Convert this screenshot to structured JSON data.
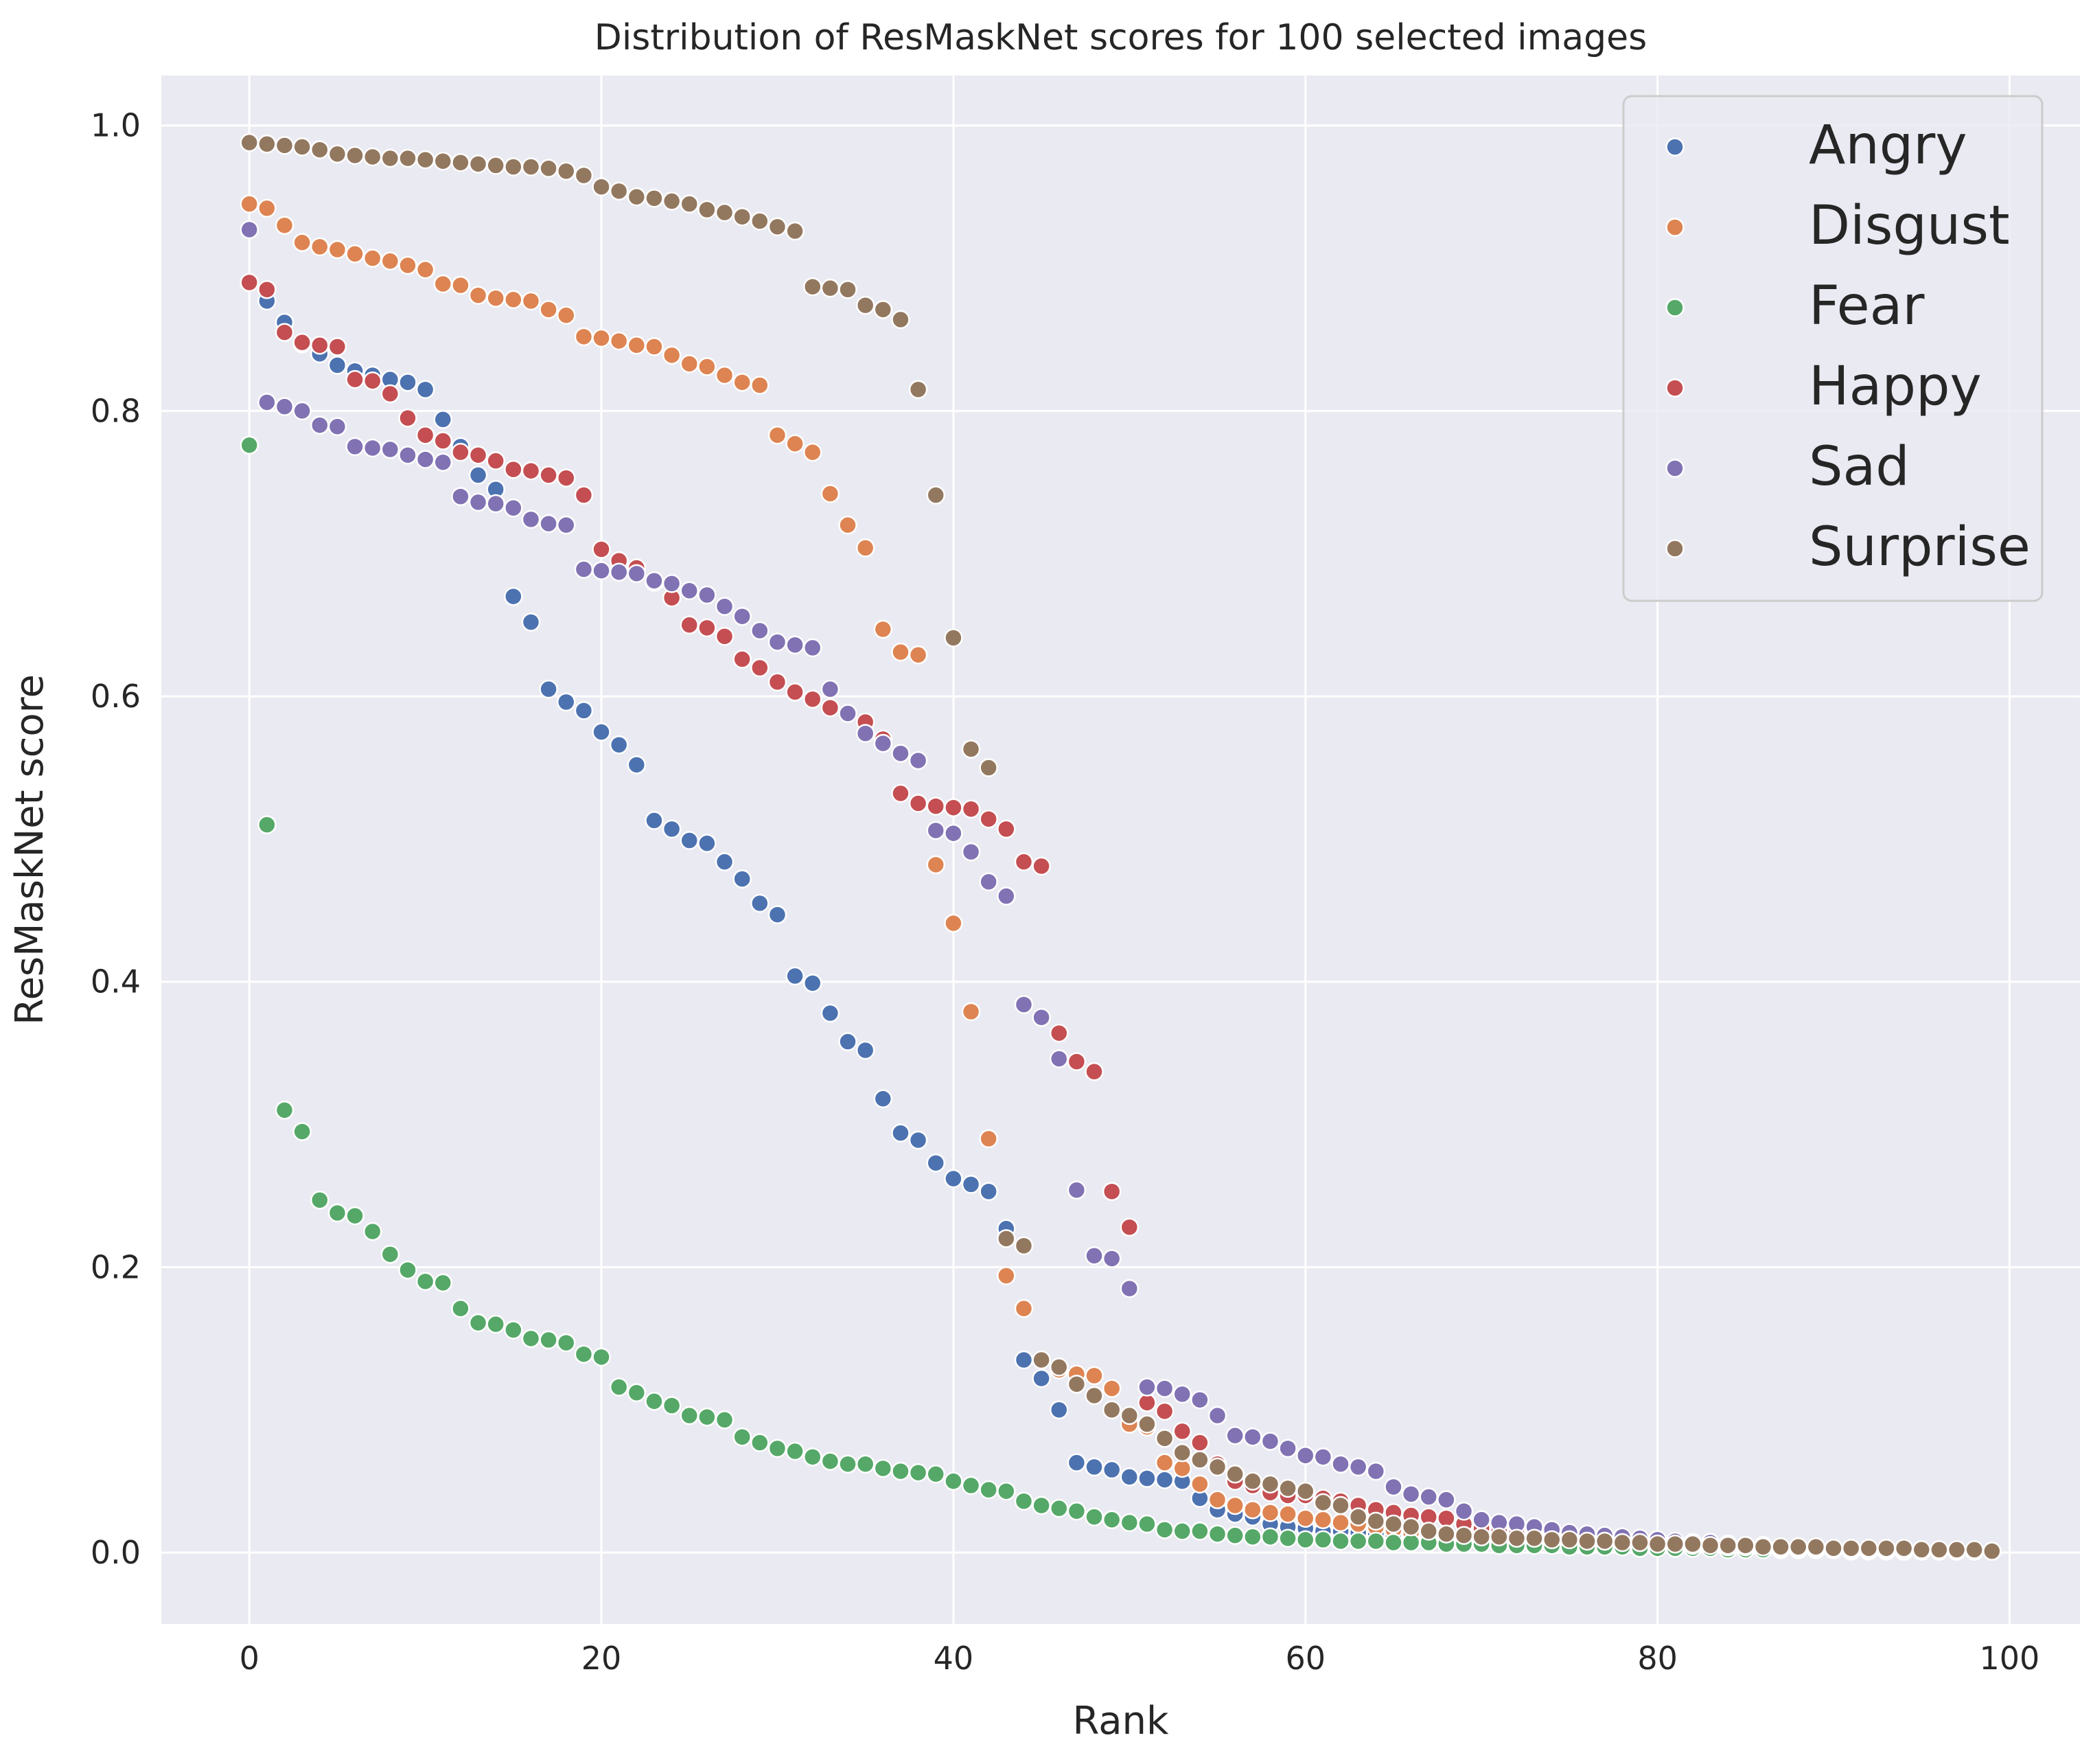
{
  "chart_data": {
    "type": "scatter",
    "title": "Distribution of ResMaskNet scores for 100 selected images",
    "xlabel": "Rank",
    "ylabel": "ResMaskNet score",
    "xlim": [
      -5,
      104
    ],
    "ylim": [
      -0.05,
      1.035
    ],
    "xticks": [
      "0",
      "20",
      "40",
      "60",
      "80",
      "100"
    ],
    "yticks": [
      "0.0",
      "0.2",
      "0.4",
      "0.6",
      "0.8",
      "1.0"
    ],
    "grid": true,
    "legend_position": "top-right",
    "series": [
      {
        "name": "Angry",
        "color": "#4c72b0",
        "values": [
          0.89,
          0.877,
          0.862,
          0.847,
          0.84,
          0.832,
          0.828,
          0.825,
          0.822,
          0.82,
          0.815,
          0.794,
          0.775,
          0.755,
          0.745,
          0.67,
          0.652,
          0.605,
          0.596,
          0.59,
          0.575,
          0.566,
          0.552,
          0.513,
          0.507,
          0.499,
          0.497,
          0.484,
          0.472,
          0.455,
          0.447,
          0.404,
          0.399,
          0.378,
          0.358,
          0.352,
          0.318,
          0.294,
          0.289,
          0.273,
          0.262,
          0.258,
          0.253,
          0.227,
          0.135,
          0.122,
          0.1,
          0.063,
          0.06,
          0.058,
          0.053,
          0.052,
          0.051,
          0.05,
          0.038,
          0.03,
          0.027,
          0.025,
          0.02,
          0.018,
          0.017,
          0.015,
          0.015,
          0.014,
          0.013,
          0.012,
          0.012,
          0.011,
          0.01,
          0.01,
          0.009,
          0.009,
          0.008,
          0.008,
          0.007,
          0.007,
          0.006,
          0.006,
          0.005,
          0.005,
          0.005,
          0.004,
          0.004,
          0.004,
          0.003,
          0.003,
          0.003,
          0.003,
          0.002,
          0.002,
          0.002,
          0.002,
          0.002,
          0.002,
          0.001,
          0.001,
          0.001,
          0.001,
          0.001,
          0.001
        ]
      },
      {
        "name": "Disgust",
        "color": "#dd8452",
        "values": [
          0.945,
          0.942,
          0.93,
          0.918,
          0.915,
          0.913,
          0.91,
          0.907,
          0.905,
          0.902,
          0.899,
          0.889,
          0.888,
          0.881,
          0.879,
          0.878,
          0.877,
          0.871,
          0.867,
          0.852,
          0.851,
          0.849,
          0.846,
          0.845,
          0.839,
          0.833,
          0.831,
          0.825,
          0.82,
          0.818,
          0.783,
          0.777,
          0.771,
          0.742,
          0.72,
          0.704,
          0.647,
          0.631,
          0.629,
          0.482,
          0.441,
          0.379,
          0.29,
          0.194,
          0.171,
          0.135,
          0.128,
          0.125,
          0.124,
          0.115,
          0.09,
          0.088,
          0.063,
          0.059,
          0.048,
          0.037,
          0.033,
          0.03,
          0.028,
          0.027,
          0.024,
          0.023,
          0.021,
          0.02,
          0.018,
          0.016,
          0.014,
          0.012,
          0.011,
          0.01,
          0.009,
          0.009,
          0.008,
          0.008,
          0.007,
          0.007,
          0.006,
          0.006,
          0.006,
          0.005,
          0.005,
          0.005,
          0.004,
          0.004,
          0.004,
          0.003,
          0.003,
          0.003,
          0.003,
          0.002,
          0.002,
          0.002,
          0.002,
          0.002,
          0.001,
          0.001,
          0.001,
          0.001,
          0.001,
          0.001
        ]
      },
      {
        "name": "Fear",
        "color": "#55a868",
        "values": [
          0.776,
          0.51,
          0.31,
          0.295,
          0.247,
          0.238,
          0.236,
          0.225,
          0.209,
          0.198,
          0.19,
          0.189,
          0.171,
          0.161,
          0.16,
          0.156,
          0.15,
          0.149,
          0.147,
          0.139,
          0.137,
          0.116,
          0.112,
          0.106,
          0.103,
          0.096,
          0.095,
          0.093,
          0.081,
          0.077,
          0.073,
          0.071,
          0.067,
          0.064,
          0.062,
          0.062,
          0.059,
          0.057,
          0.056,
          0.055,
          0.05,
          0.047,
          0.044,
          0.043,
          0.036,
          0.033,
          0.031,
          0.029,
          0.025,
          0.023,
          0.021,
          0.02,
          0.016,
          0.015,
          0.015,
          0.013,
          0.012,
          0.011,
          0.011,
          0.01,
          0.009,
          0.009,
          0.008,
          0.008,
          0.008,
          0.007,
          0.007,
          0.007,
          0.006,
          0.006,
          0.006,
          0.005,
          0.005,
          0.005,
          0.005,
          0.004,
          0.004,
          0.004,
          0.004,
          0.003,
          0.003,
          0.003,
          0.003,
          0.003,
          0.002,
          0.002,
          0.002,
          0.002,
          0.002,
          0.002,
          0.002,
          0.001,
          0.001,
          0.001,
          0.001,
          0.001,
          0.001,
          0.001,
          0.001,
          0.001
        ]
      },
      {
        "name": "Happy",
        "color": "#c44e52",
        "values": [
          0.89,
          0.885,
          0.855,
          0.848,
          0.846,
          0.845,
          0.822,
          0.821,
          0.812,
          0.795,
          0.783,
          0.779,
          0.771,
          0.769,
          0.765,
          0.759,
          0.758,
          0.755,
          0.753,
          0.741,
          0.703,
          0.695,
          0.69,
          0.68,
          0.669,
          0.65,
          0.648,
          0.642,
          0.626,
          0.62,
          0.61,
          0.603,
          0.598,
          0.592,
          0.588,
          0.582,
          0.57,
          0.532,
          0.525,
          0.523,
          0.522,
          0.521,
          0.514,
          0.507,
          0.484,
          0.481,
          0.364,
          0.344,
          0.337,
          0.253,
          0.228,
          0.105,
          0.099,
          0.085,
          0.077,
          0.062,
          0.05,
          0.047,
          0.042,
          0.04,
          0.04,
          0.038,
          0.036,
          0.033,
          0.03,
          0.028,
          0.026,
          0.025,
          0.024,
          0.02,
          0.017,
          0.015,
          0.013,
          0.012,
          0.011,
          0.01,
          0.009,
          0.008,
          0.008,
          0.007,
          0.006,
          0.006,
          0.005,
          0.005,
          0.004,
          0.004,
          0.004,
          0.003,
          0.003,
          0.003,
          0.002,
          0.002,
          0.002,
          0.002,
          0.001,
          0.001,
          0.001,
          0.001,
          0.001,
          0.001
        ]
      },
      {
        "name": "Sad",
        "color": "#8172b3",
        "values": [
          0.927,
          0.806,
          0.803,
          0.8,
          0.79,
          0.789,
          0.775,
          0.774,
          0.773,
          0.769,
          0.766,
          0.764,
          0.74,
          0.736,
          0.735,
          0.732,
          0.724,
          0.721,
          0.72,
          0.689,
          0.688,
          0.687,
          0.686,
          0.681,
          0.679,
          0.674,
          0.671,
          0.663,
          0.656,
          0.646,
          0.638,
          0.636,
          0.634,
          0.605,
          0.588,
          0.574,
          0.567,
          0.56,
          0.555,
          0.506,
          0.504,
          0.491,
          0.47,
          0.46,
          0.384,
          0.375,
          0.346,
          0.254,
          0.208,
          0.206,
          0.185,
          0.116,
          0.115,
          0.111,
          0.107,
          0.096,
          0.082,
          0.081,
          0.078,
          0.073,
          0.068,
          0.067,
          0.062,
          0.06,
          0.057,
          0.046,
          0.041,
          0.039,
          0.037,
          0.029,
          0.023,
          0.021,
          0.02,
          0.018,
          0.016,
          0.014,
          0.013,
          0.012,
          0.011,
          0.01,
          0.009,
          0.008,
          0.007,
          0.007,
          0.006,
          0.005,
          0.005,
          0.004,
          0.004,
          0.004,
          0.003,
          0.003,
          0.003,
          0.002,
          0.002,
          0.002,
          0.002,
          0.001,
          0.001,
          0.001
        ]
      },
      {
        "name": "Surprise",
        "color": "#937860",
        "values": [
          0.988,
          0.987,
          0.986,
          0.985,
          0.983,
          0.98,
          0.979,
          0.978,
          0.977,
          0.977,
          0.976,
          0.975,
          0.974,
          0.973,
          0.972,
          0.971,
          0.971,
          0.97,
          0.968,
          0.965,
          0.957,
          0.954,
          0.95,
          0.949,
          0.947,
          0.945,
          0.941,
          0.939,
          0.936,
          0.933,
          0.929,
          0.926,
          0.887,
          0.886,
          0.885,
          0.874,
          0.871,
          0.864,
          0.815,
          0.741,
          0.641,
          0.563,
          0.55,
          0.22,
          0.215,
          0.135,
          0.13,
          0.118,
          0.11,
          0.1,
          0.096,
          0.09,
          0.08,
          0.07,
          0.065,
          0.06,
          0.055,
          0.05,
          0.048,
          0.045,
          0.043,
          0.035,
          0.033,
          0.025,
          0.022,
          0.02,
          0.018,
          0.015,
          0.013,
          0.012,
          0.011,
          0.011,
          0.01,
          0.01,
          0.009,
          0.009,
          0.008,
          0.008,
          0.007,
          0.007,
          0.006,
          0.006,
          0.006,
          0.005,
          0.005,
          0.005,
          0.004,
          0.004,
          0.004,
          0.004,
          0.003,
          0.003,
          0.003,
          0.003,
          0.003,
          0.002,
          0.002,
          0.002,
          0.002,
          0.001
        ]
      }
    ]
  }
}
